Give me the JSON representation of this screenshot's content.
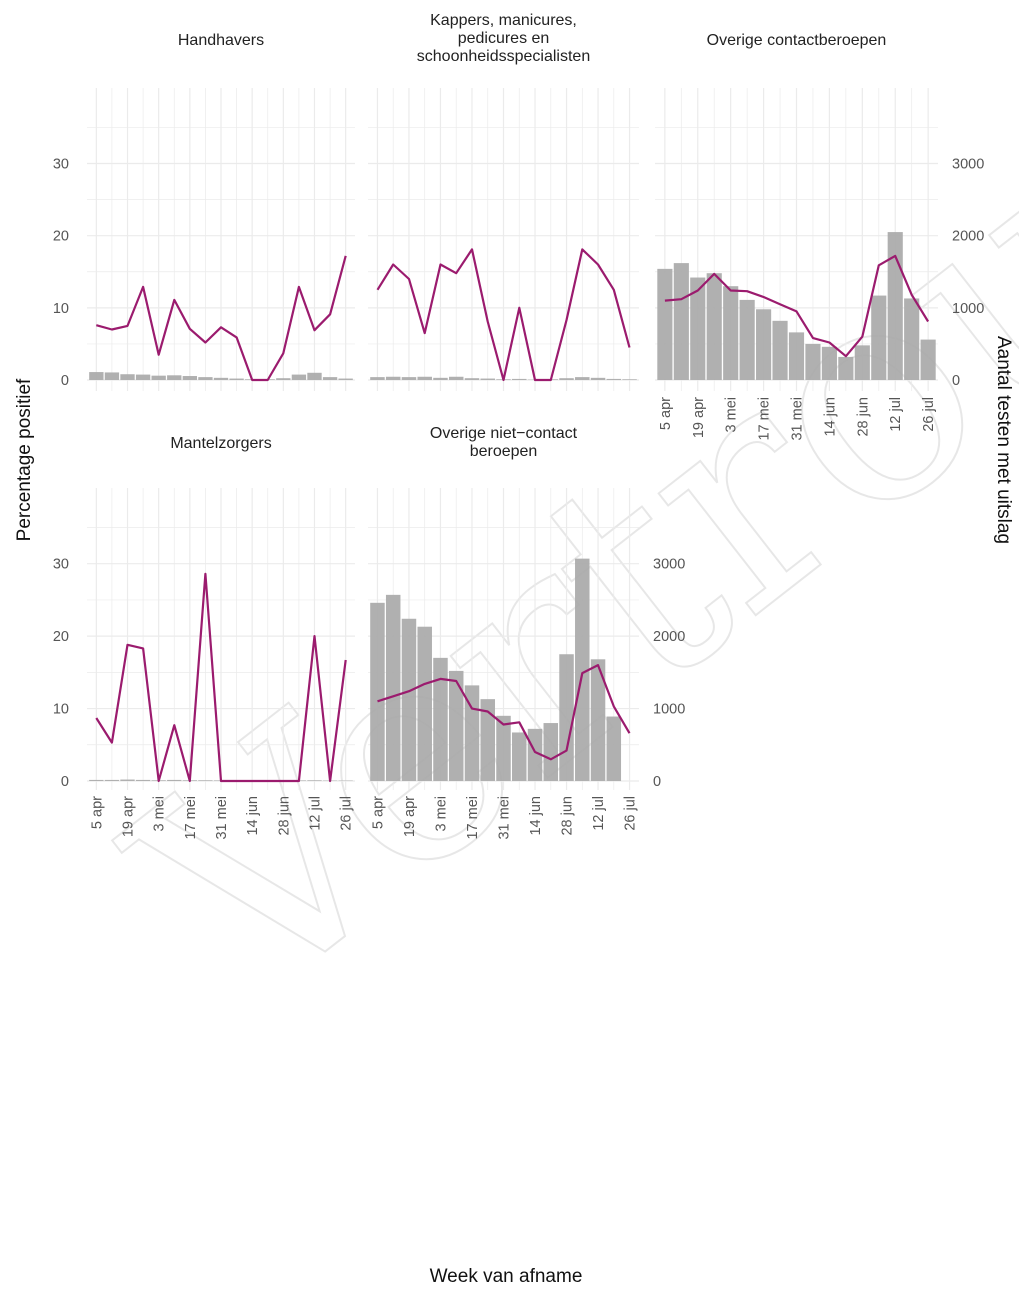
{
  "chart_data": {
    "type": "bar+line",
    "xlabel": "Week van afname",
    "ylabel_left": "Percentage positief",
    "ylabel_right": "Aantal testen met uitslag",
    "x_tick_labels": [
      "5 apr",
      "19 apr",
      "3 mei",
      "17 mei",
      "31 mei",
      "14 jun",
      "28 jun",
      "12 jul",
      "26 jul"
    ],
    "weeks": [
      "5 apr",
      "12 apr",
      "19 apr",
      "26 apr",
      "3 mei",
      "10 mei",
      "17 mei",
      "24 mei",
      "31 mei",
      "7 jun",
      "14 jun",
      "21 jun",
      "28 jun",
      "5 jul",
      "12 jul",
      "19 jul",
      "26 jul"
    ],
    "left_axis": {
      "ylim": [
        0,
        37
      ],
      "ticks": [
        0,
        10,
        20,
        30
      ]
    },
    "right_axis": {
      "ylim": [
        0,
        3700
      ],
      "ticks": [
        0,
        1000,
        2000,
        3000
      ]
    },
    "watermark": "Vertrouwelijk",
    "colors": {
      "line": "#9b1b6e",
      "bar": "#a9a9a9",
      "grid": "#ebebeb",
      "text": "#555555"
    },
    "panels": [
      {
        "title": "Handhavers",
        "percentage_positief": [
          7.6,
          7.0,
          7.5,
          12.9,
          3.5,
          11.1,
          7.1,
          5.2,
          7.3,
          5.9,
          0,
          0,
          3.7,
          12.9,
          6.9,
          9.1,
          17.2
        ],
        "aantal_testen": [
          110,
          105,
          80,
          75,
          60,
          65,
          55,
          40,
          30,
          20,
          10,
          10,
          25,
          75,
          100,
          40,
          20
        ]
      },
      {
        "title": "Kappers, manicures,\npedicures en\nschoonheidsspecialisten",
        "percentage_positief": [
          12.5,
          16.0,
          14.0,
          6.5,
          16.0,
          14.8,
          18.1,
          8.1,
          0,
          10.0,
          0,
          0,
          8.3,
          18.1,
          16.0,
          12.5,
          4.5
        ],
        "aantal_testen": [
          40,
          45,
          40,
          45,
          30,
          45,
          25,
          20,
          10,
          15,
          5,
          10,
          25,
          40,
          30,
          15,
          10
        ]
      },
      {
        "title": "Overige contactberoepen",
        "percentage_positief": [
          11.0,
          11.2,
          12.4,
          14.7,
          12.4,
          12.3,
          11.5,
          10.5,
          9.5,
          5.8,
          5.2,
          3.3,
          6.0,
          15.9,
          17.2,
          11.8,
          8.1
        ],
        "aantal_testen": [
          1540,
          1620,
          1420,
          1480,
          1300,
          1110,
          980,
          820,
          660,
          500,
          460,
          320,
          480,
          1170,
          2050,
          1130,
          560
        ]
      },
      {
        "title": "Mantelzorgers",
        "percentage_positief": [
          8.7,
          5.3,
          18.8,
          18.3,
          0,
          7.7,
          0,
          28.6,
          0,
          0,
          0,
          0,
          0,
          0,
          20.0,
          0,
          16.7
        ],
        "aantal_testen": [
          15,
          15,
          20,
          15,
          10,
          15,
          10,
          10,
          8,
          6,
          5,
          5,
          6,
          8,
          10,
          6,
          6
        ]
      },
      {
        "title": "Overige niet−contact\nberoepen",
        "percentage_positief": [
          11.0,
          11.7,
          12.4,
          13.4,
          14.1,
          13.8,
          10.0,
          9.6,
          7.8,
          8.1,
          4.0,
          3.0,
          4.2,
          14.9,
          16.0,
          10.3,
          6.6
        ],
        "aantal_testen": [
          2460,
          2570,
          2240,
          2130,
          1700,
          1520,
          1320,
          1130,
          900,
          670,
          720,
          800,
          1750,
          3070,
          1680,
          890,
          0
        ]
      }
    ]
  }
}
